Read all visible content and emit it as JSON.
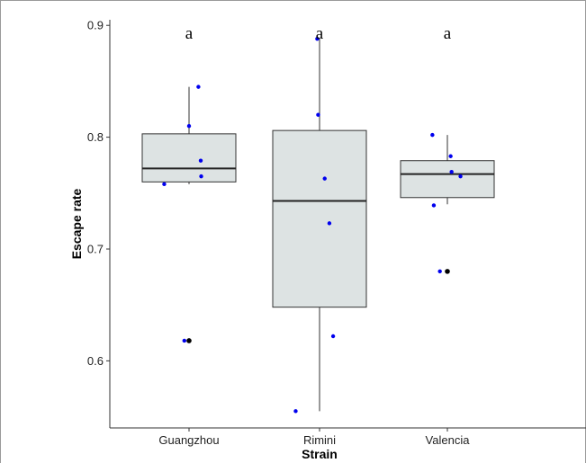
{
  "chart_data": {
    "type": "box",
    "xlabel": "Strain",
    "ylabel": "Escape rate",
    "ylim": [
      0.54,
      0.905
    ],
    "yticks": [
      0.6,
      0.7,
      0.8,
      0.9
    ],
    "ytick_labels": [
      "0.6",
      "0.7",
      "0.8",
      "0.9"
    ],
    "categories": [
      "Guangzhou",
      "Rimini",
      "Valencia"
    ],
    "box_color": "#dde3e3",
    "point_color": "#0000ee",
    "outlier_color": "#000000",
    "groups": [
      {
        "name": "Guangzhou",
        "significance": "a",
        "whisker_low": 0.758,
        "q1": 0.76,
        "median": 0.772,
        "q3": 0.803,
        "whisker_high": 0.845,
        "outliers": [
          0.618
        ],
        "points": [
          {
            "y": 0.845,
            "jitter": 0.2
          },
          {
            "y": 0.81,
            "jitter": 0.0
          },
          {
            "y": 0.779,
            "jitter": 0.25
          },
          {
            "y": 0.765,
            "jitter": 0.26
          },
          {
            "y": 0.758,
            "jitter": -0.53
          },
          {
            "y": 0.618,
            "jitter": -0.1
          }
        ]
      },
      {
        "name": "Rimini",
        "significance": "a",
        "whisker_low": 0.555,
        "q1": 0.648,
        "median": 0.743,
        "q3": 0.806,
        "whisker_high": 0.888,
        "outliers": [],
        "points": [
          {
            "y": 0.888,
            "jitter": -0.05
          },
          {
            "y": 0.82,
            "jitter": -0.03
          },
          {
            "y": 0.763,
            "jitter": 0.11
          },
          {
            "y": 0.723,
            "jitter": 0.21
          },
          {
            "y": 0.622,
            "jitter": 0.29
          },
          {
            "y": 0.555,
            "jitter": -0.51
          }
        ]
      },
      {
        "name": "Valencia",
        "significance": "a",
        "whisker_low": 0.74,
        "q1": 0.746,
        "median": 0.767,
        "q3": 0.779,
        "whisker_high": 0.802,
        "outliers": [
          0.68
        ],
        "points": [
          {
            "y": 0.802,
            "jitter": -0.32
          },
          {
            "y": 0.783,
            "jitter": 0.07
          },
          {
            "y": 0.769,
            "jitter": 0.09
          },
          {
            "y": 0.765,
            "jitter": 0.28
          },
          {
            "y": 0.739,
            "jitter": -0.29
          },
          {
            "y": 0.68,
            "jitter": -0.16
          }
        ]
      }
    ]
  }
}
